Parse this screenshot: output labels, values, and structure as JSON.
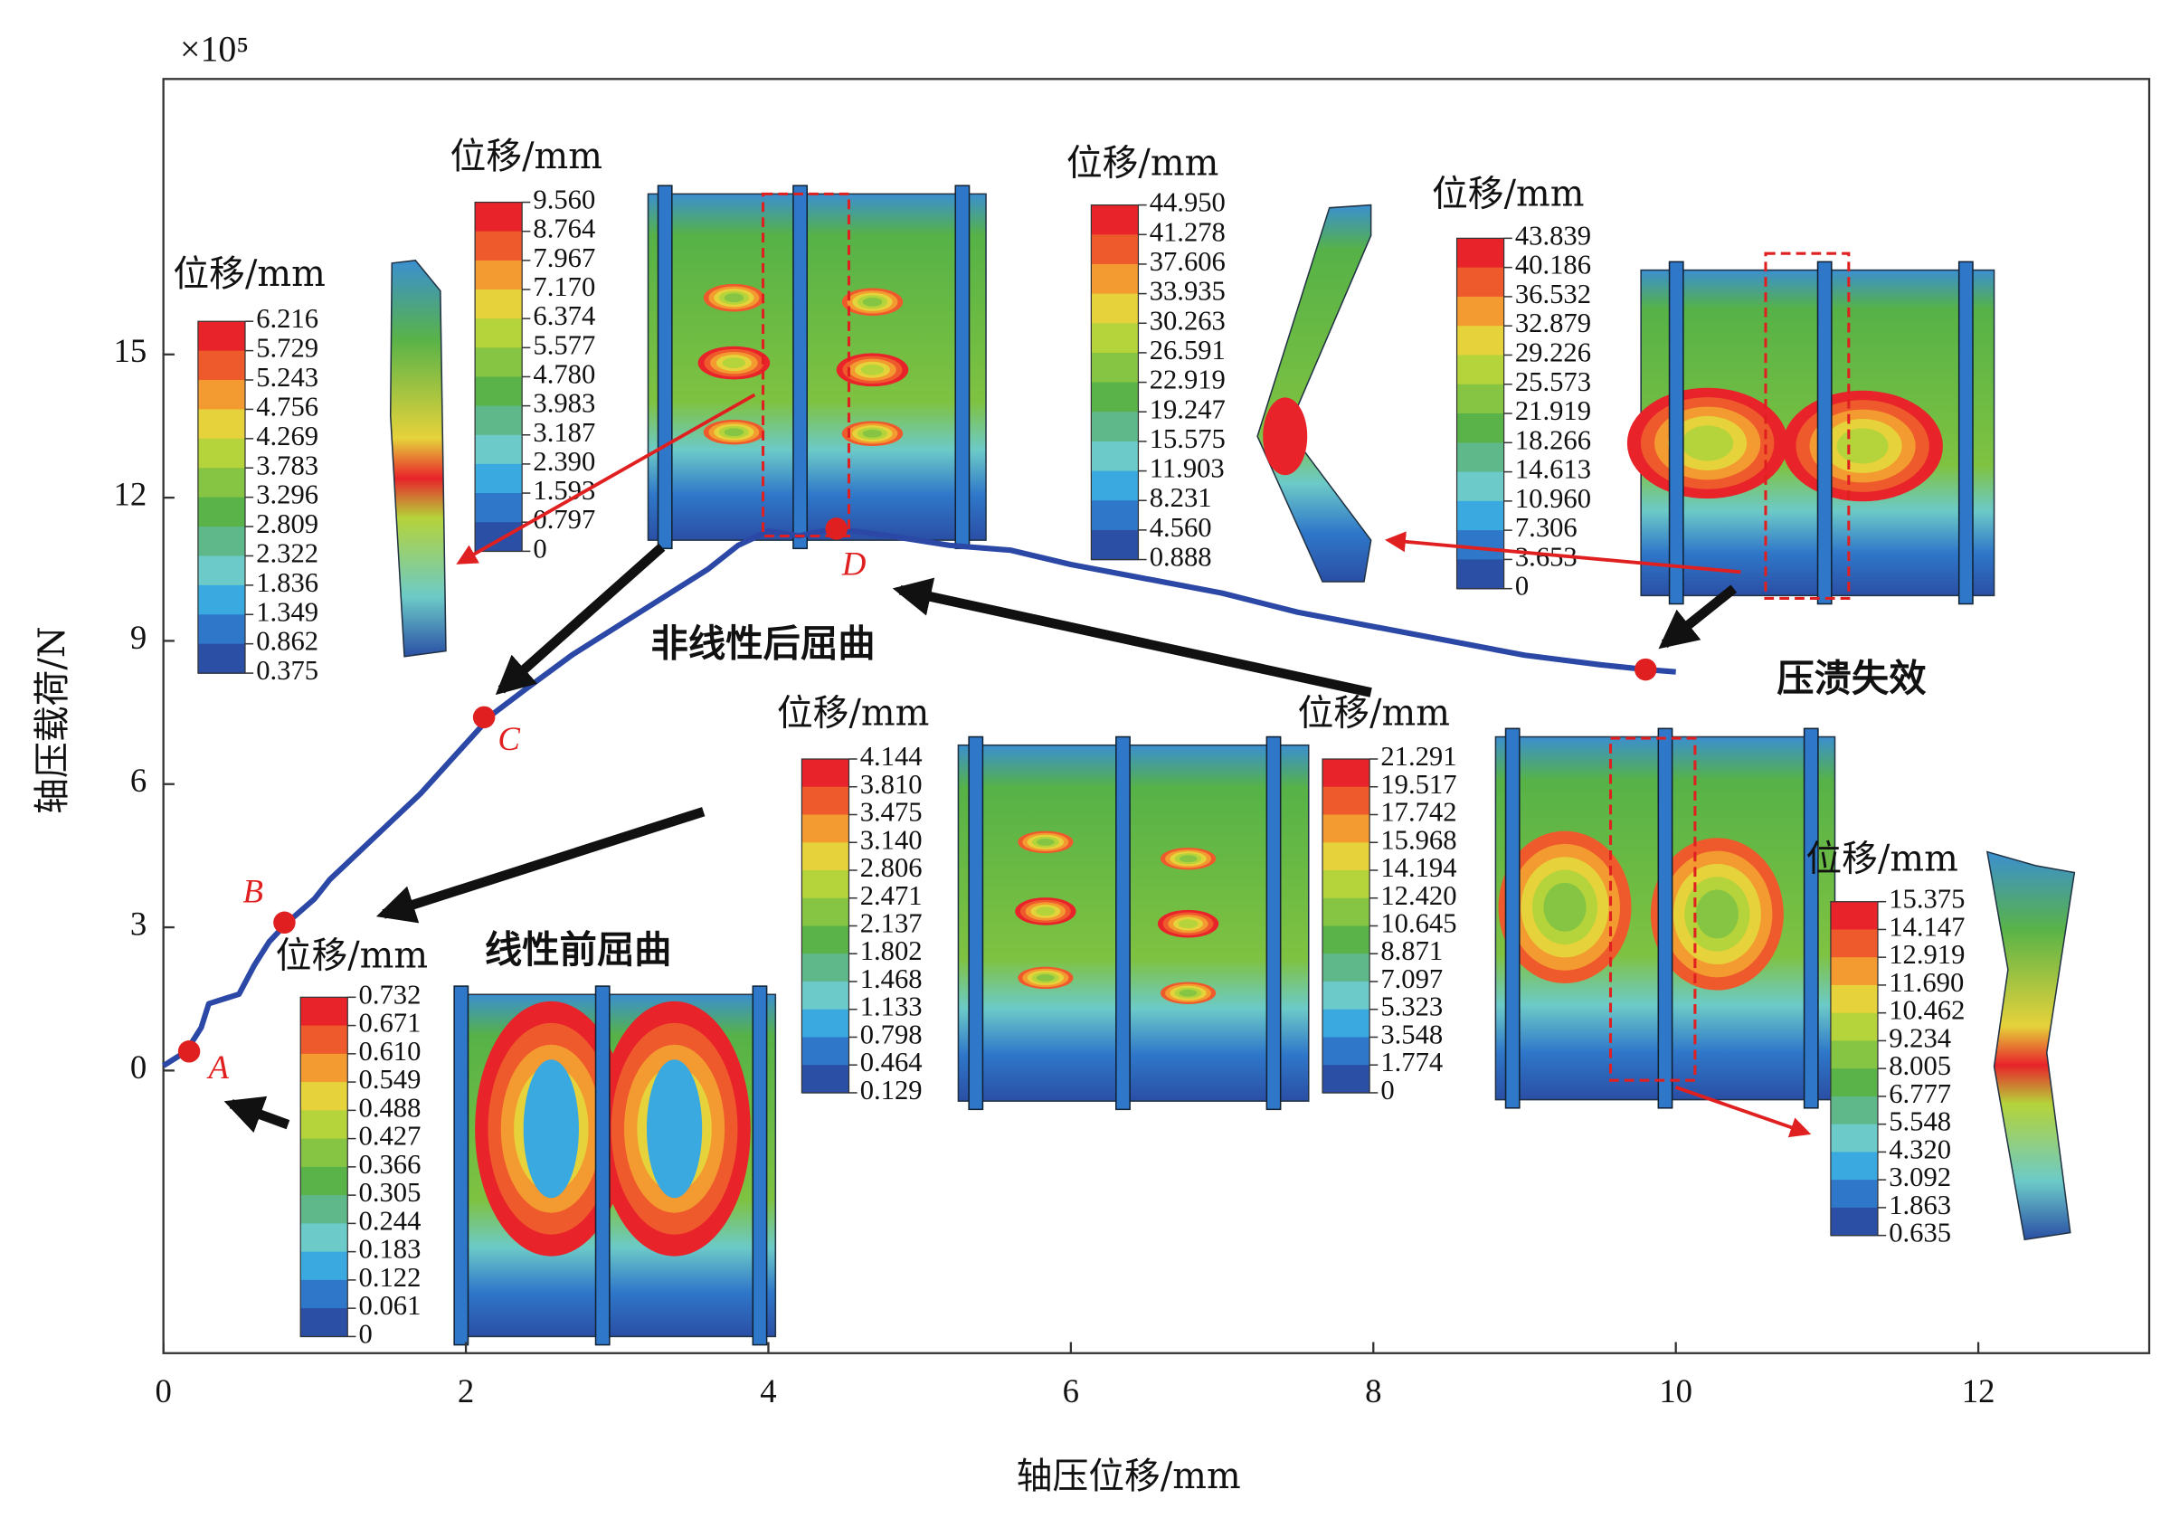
{
  "chart_data": {
    "type": "line",
    "x_label": "轴压位移/mm",
    "y_label": "轴压载荷/N",
    "y_multiplier": "×10⁵",
    "xlim": [
      0,
      13.13
    ],
    "ylim": [
      -5.92,
      20.77
    ],
    "xticks": [
      0,
      2,
      4,
      6,
      8,
      10,
      12
    ],
    "yticks": [
      0,
      3,
      6,
      9,
      12,
      15
    ],
    "color": "#2b48a6",
    "x": [
      0,
      0.15,
      0.25,
      0.3,
      0.4,
      0.5,
      0.6,
      0.7,
      0.82,
      1.0,
      1.1,
      1.3,
      1.5,
      1.7,
      1.9,
      2.1,
      2.15,
      2.4,
      2.7,
      3.0,
      3.3,
      3.6,
      3.8,
      4.0,
      4.2,
      4.45,
      4.8,
      5.2,
      5.6,
      6.0,
      6.5,
      7.0,
      7.5,
      8.0,
      8.5,
      9.0,
      9.5,
      9.8,
      10.0
    ],
    "values": [
      0.1,
      0.4,
      0.9,
      1.4,
      1.5,
      1.6,
      2.2,
      2.7,
      3.1,
      3.6,
      4.0,
      4.6,
      5.2,
      5.8,
      6.5,
      7.2,
      7.4,
      8.0,
      8.7,
      9.3,
      9.9,
      10.5,
      11.0,
      11.3,
      11.2,
      11.35,
      11.2,
      11.0,
      10.9,
      10.6,
      10.3,
      10.0,
      9.6,
      9.3,
      9.0,
      8.7,
      8.5,
      8.4,
      8.35
    ],
    "points": {
      "color": "#e02020",
      "x": [
        0.17,
        0.8,
        2.12,
        4.45,
        9.8
      ],
      "values": [
        0.4,
        3.1,
        7.4,
        11.35,
        8.4
      ],
      "labels": [
        "A",
        "B",
        "C",
        "D",
        null
      ]
    },
    "annotations": [
      "非线性后屈曲",
      "线性前屈曲",
      "压溃失效"
    ],
    "contour_colors": [
      "#e8232a",
      "#ef5a2c",
      "#f39a30",
      "#e6d23a",
      "#b5d33a",
      "#86c443",
      "#59b348",
      "#5fb88a",
      "#6ccac8",
      "#39a9e0",
      "#2f77c9",
      "#2a4fa5"
    ],
    "colorbars": [
      {
        "title": "位移/mm",
        "labels": [
          "6.216",
          "5.729",
          "5.243",
          "4.756",
          "4.269",
          "3.783",
          "3.296",
          "2.809",
          "2.322",
          "1.836",
          "1.349",
          "0.862",
          "0.375"
        ]
      },
      {
        "title": "位移/mm",
        "labels": [
          "9.560",
          "8.764",
          "7.967",
          "7.170",
          "6.374",
          "5.577",
          "4.780",
          "3.983",
          "3.187",
          "2.390",
          "1.593",
          "0.797",
          "0"
        ]
      },
      {
        "title": "位移/mm",
        "labels": [
          "44.950",
          "41.278",
          "37.606",
          "33.935",
          "30.263",
          "26.591",
          "22.919",
          "19.247",
          "15.575",
          "11.903",
          "8.231",
          "4.560",
          "0.888"
        ]
      },
      {
        "title": "位移/mm",
        "labels": [
          "43.839",
          "40.186",
          "36.532",
          "32.879",
          "29.226",
          "25.573",
          "21.919",
          "18.266",
          "14.613",
          "10.960",
          "7.306",
          "3.653",
          "0"
        ]
      },
      {
        "title": "位移/mm",
        "labels": [
          "4.144",
          "3.810",
          "3.475",
          "3.140",
          "2.806",
          "2.471",
          "2.137",
          "1.802",
          "1.468",
          "1.133",
          "0.798",
          "0.464",
          "0.129"
        ]
      },
      {
        "title": "位移/mm",
        "labels": [
          "21.291",
          "19.517",
          "17.742",
          "15.968",
          "14.194",
          "12.420",
          "10.645",
          "8.871",
          "7.097",
          "5.323",
          "3.548",
          "1.774",
          "0"
        ]
      },
      {
        "title": "位移/mm",
        "labels": [
          "15.375",
          "14.147",
          "12.919",
          "11.690",
          "10.462",
          "9.234",
          "8.005",
          "6.777",
          "5.548",
          "4.320",
          "3.092",
          "1.863",
          "0.635"
        ]
      },
      {
        "title": "位移/mm",
        "labels": [
          "0.732",
          "0.671",
          "0.610",
          "0.549",
          "0.488",
          "0.427",
          "0.366",
          "0.305",
          "0.244",
          "0.183",
          "0.122",
          "0.061",
          "0"
        ]
      }
    ]
  }
}
